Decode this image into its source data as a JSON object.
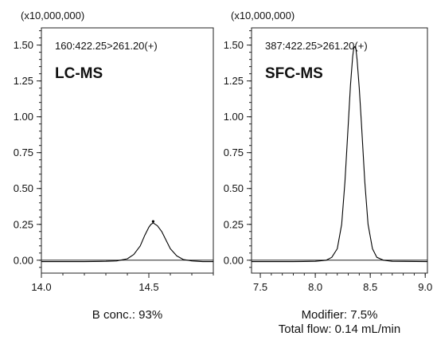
{
  "chart_data": [
    {
      "type": "line",
      "multiplier_label": "(x10,000,000)",
      "ion_label": "160:422.25>261.20(+)",
      "technique_label": "LC-MS",
      "x_note": [
        "B conc.: 93%"
      ],
      "xlim": [
        14.0,
        14.8
      ],
      "ylim": [
        -0.09,
        1.62
      ],
      "x_ticks": [
        14.0,
        14.5
      ],
      "x_tick_labels": [
        "14.0",
        "14.5"
      ],
      "y_ticks": [
        0.0,
        0.25,
        0.5,
        0.75,
        1.0,
        1.25,
        1.5
      ],
      "y_tick_labels": [
        "0.00",
        "0.25",
        "0.50",
        "0.75",
        "1.00",
        "1.25",
        "1.50"
      ],
      "x_minor_step": 0.1,
      "y_minor_step": 0.05,
      "series": [
        {
          "x": [
            14.0,
            14.1,
            14.2,
            14.3,
            14.35,
            14.4,
            14.43,
            14.46,
            14.48,
            14.5,
            14.51,
            14.52,
            14.54,
            14.56,
            14.58,
            14.6,
            14.63,
            14.66,
            14.7,
            14.75,
            14.8
          ],
          "y": [
            -0.01,
            -0.01,
            -0.01,
            -0.008,
            -0.005,
            0.01,
            0.04,
            0.1,
            0.17,
            0.23,
            0.25,
            0.26,
            0.24,
            0.2,
            0.14,
            0.08,
            0.03,
            0.005,
            -0.005,
            -0.01,
            -0.01
          ]
        }
      ],
      "apex_marker": {
        "x": 14.52,
        "y": 0.27
      }
    },
    {
      "type": "line",
      "multiplier_label": "(x10,000,000)",
      "ion_label": "387:422.25>261.20(+)",
      "technique_label": "SFC-MS",
      "x_note": [
        "Modifier: 7.5%",
        "Total flow: 0.14 mL/min"
      ],
      "xlim": [
        7.42,
        9.02
      ],
      "ylim": [
        -0.09,
        1.62
      ],
      "x_ticks": [
        7.5,
        8.0,
        8.5,
        9.0
      ],
      "x_tick_labels": [
        "7.5",
        "8.0",
        "8.5",
        "9.0"
      ],
      "y_ticks": [
        0.0,
        0.25,
        0.5,
        0.75,
        1.0,
        1.25,
        1.5
      ],
      "y_tick_labels": [
        "0.00",
        "0.25",
        "0.50",
        "0.75",
        "1.00",
        "1.25",
        "1.50"
      ],
      "x_minor_step": 0.1,
      "y_minor_step": 0.05,
      "series": [
        {
          "x": [
            7.42,
            7.8,
            8.0,
            8.1,
            8.15,
            8.2,
            8.24,
            8.27,
            8.3,
            8.32,
            8.34,
            8.35,
            8.36,
            8.37,
            8.38,
            8.4,
            8.42,
            8.45,
            8.48,
            8.52,
            8.56,
            8.62,
            8.7,
            9.02
          ],
          "y": [
            -0.01,
            -0.01,
            -0.008,
            0.0,
            0.02,
            0.08,
            0.25,
            0.55,
            0.95,
            1.22,
            1.42,
            1.48,
            1.49,
            1.47,
            1.4,
            1.2,
            0.95,
            0.55,
            0.25,
            0.08,
            0.02,
            0.0,
            -0.008,
            -0.01
          ]
        }
      ]
    }
  ]
}
